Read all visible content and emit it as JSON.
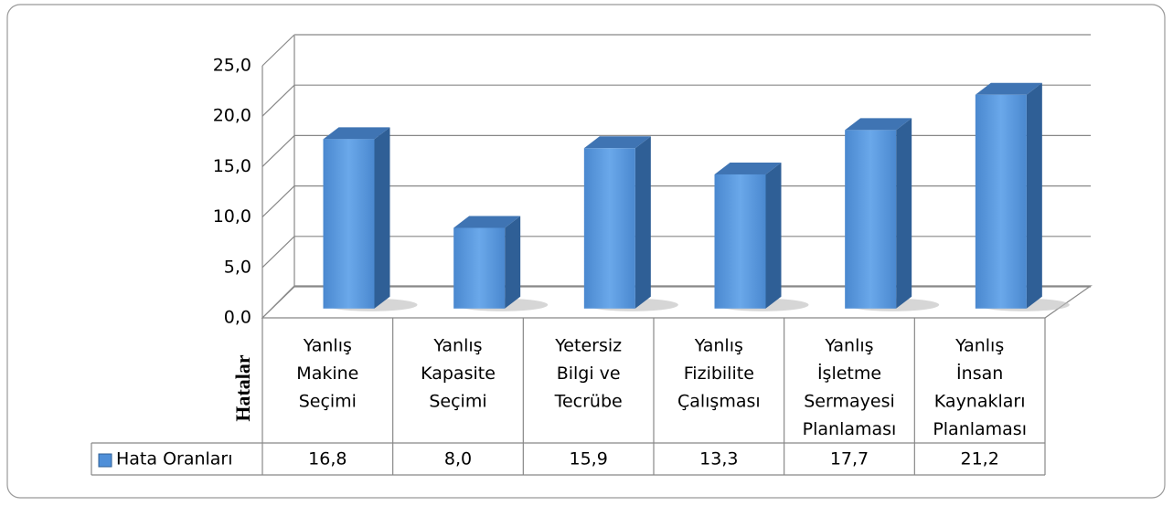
{
  "chart_data": {
    "type": "bar3d",
    "y_axis_label": "Hatalar",
    "categories": [
      [
        "Yanlış",
        "Makine",
        "Seçimi"
      ],
      [
        "Yanlış",
        "Kapasite",
        "Seçimi"
      ],
      [
        "Yetersiz",
        "Bilgi ve",
        "Tecrübe"
      ],
      [
        "Yanlış",
        "Fizibilite",
        "Çalışması"
      ],
      [
        "Yanlış",
        "İşletme",
        "Sermayesi",
        "Planlaması"
      ],
      [
        "Yanlış",
        "İnsan",
        "Kaynakları",
        "Planlaması"
      ]
    ],
    "series": [
      {
        "name": "Hata Oranları",
        "color": "#4f8fd8",
        "values": [
          16.8,
          8.0,
          15.9,
          13.3,
          17.7,
          21.2
        ],
        "value_labels": [
          "16,8",
          "8,0",
          "15,9",
          "13,3",
          "17,7",
          "21,2"
        ]
      }
    ],
    "ylim": [
      0,
      25
    ],
    "yticks": [
      {
        "value": 0,
        "label": "0,0"
      },
      {
        "value": 5,
        "label": "5,0"
      },
      {
        "value": 10,
        "label": "10,0"
      },
      {
        "value": 15,
        "label": "15,0"
      },
      {
        "value": 20,
        "label": "20,0"
      },
      {
        "value": 25,
        "label": "25,0"
      }
    ],
    "grid": true
  }
}
